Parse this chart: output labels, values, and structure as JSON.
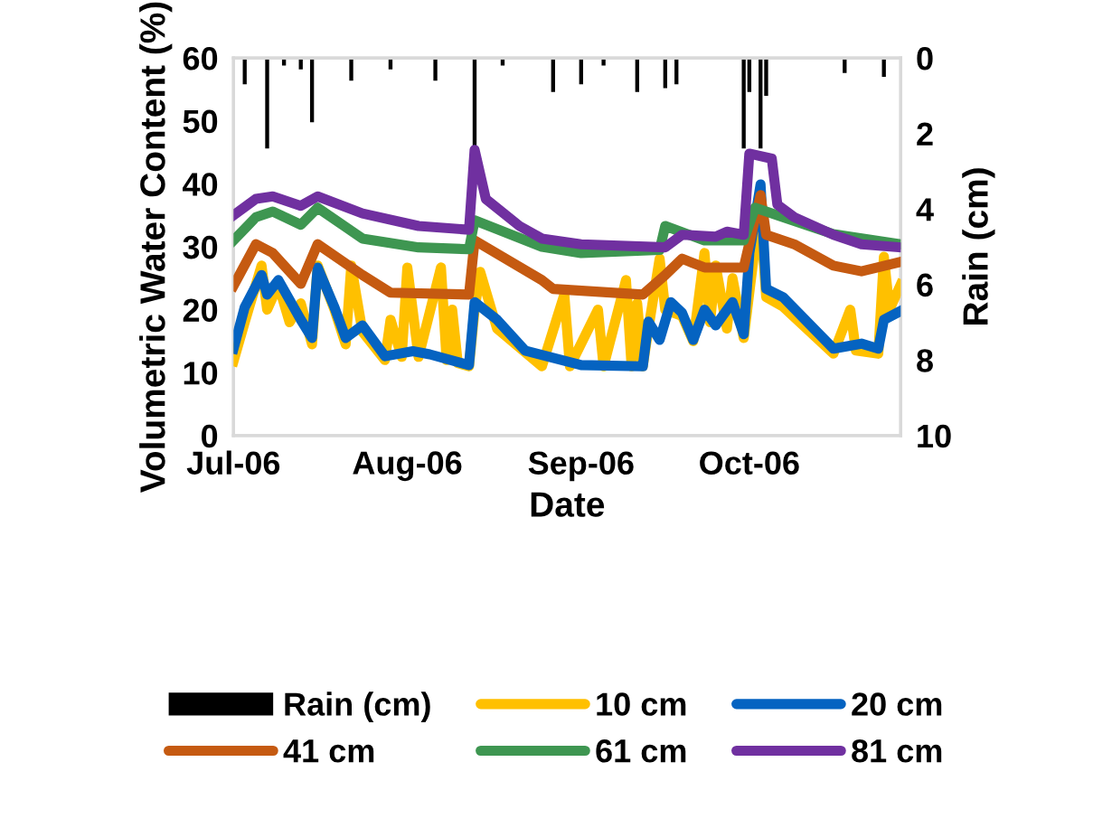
{
  "chart_data": {
    "type": "line",
    "xlabel": "Date",
    "ylabel": "Volumetric Water Content (%)",
    "y2label": "Rain (cm)",
    "xlim": [
      "2006-07-01",
      "2006-10-28"
    ],
    "xticks": [
      {
        "value": "2006-07-01",
        "label": "Jul-06"
      },
      {
        "value": "2006-08-01",
        "label": "Aug-06"
      },
      {
        "value": "2006-09-01",
        "label": "Sep-06"
      },
      {
        "value": "2006-10-01",
        "label": "Oct-06"
      }
    ],
    "ylim": [
      0,
      60
    ],
    "yticks": [
      0,
      10,
      20,
      30,
      40,
      50,
      60
    ],
    "y2lim": [
      10,
      0
    ],
    "y2ticks": [
      0,
      2,
      4,
      6,
      8,
      10
    ],
    "grid": false,
    "legend": "bottom",
    "series": [
      {
        "name": "Rain (cm)",
        "type": "bar",
        "axis": "y2",
        "color": "#000000",
        "x": [
          "2006-07-03",
          "2006-07-07",
          "2006-07-10",
          "2006-07-13",
          "2006-07-15",
          "2006-07-22",
          "2006-07-29",
          "2006-08-06",
          "2006-08-13",
          "2006-08-18",
          "2006-08-27",
          "2006-09-01",
          "2006-09-05",
          "2006-09-11",
          "2006-09-16",
          "2006-09-18",
          "2006-09-30",
          "2006-10-01",
          "2006-10-03",
          "2006-10-04",
          "2006-10-18",
          "2006-10-25"
        ],
        "values": [
          0.7,
          2.4,
          0.2,
          0.3,
          1.7,
          0.6,
          0.3,
          0.6,
          2.4,
          0.2,
          0.9,
          0.7,
          0.2,
          0.9,
          0.8,
          0.7,
          2.4,
          0.9,
          2.4,
          1.0,
          0.4,
          0.5
        ]
      },
      {
        "name": "10 cm",
        "color": "#ffc000",
        "x": [
          "2006-07-01",
          "2006-07-03",
          "2006-07-06",
          "2006-07-07",
          "2006-07-09",
          "2006-07-11",
          "2006-07-13",
          "2006-07-15",
          "2006-07-16",
          "2006-07-19",
          "2006-07-21",
          "2006-07-22",
          "2006-07-24",
          "2006-07-28",
          "2006-07-29",
          "2006-07-31",
          "2006-08-01",
          "2006-08-03",
          "2006-08-07",
          "2006-08-08",
          "2006-08-09",
          "2006-08-10",
          "2006-08-12",
          "2006-08-13",
          "2006-08-14",
          "2006-08-17",
          "2006-08-25",
          "2006-08-29",
          "2006-08-30",
          "2006-09-04",
          "2006-09-05",
          "2006-09-09",
          "2006-09-10",
          "2006-09-11",
          "2006-09-12",
          "2006-09-13",
          "2006-09-15",
          "2006-09-16",
          "2006-09-19",
          "2006-09-21",
          "2006-09-23",
          "2006-09-24",
          "2006-09-25",
          "2006-09-27",
          "2006-09-28",
          "2006-09-30",
          "2006-10-02",
          "2006-10-03",
          "2006-10-04",
          "2006-10-07",
          "2006-10-16",
          "2006-10-19",
          "2006-10-20",
          "2006-10-24",
          "2006-10-25",
          "2006-10-26",
          "2006-10-28"
        ],
        "values": [
          11.8,
          18,
          27,
          20,
          24,
          18,
          21,
          14.5,
          27,
          20,
          14.5,
          27,
          16.5,
          12,
          18.4,
          12.5,
          26.7,
          12.5,
          26.7,
          12,
          20,
          11.5,
          11,
          20,
          26,
          17,
          11,
          22.4,
          11,
          20,
          11,
          24.7,
          11,
          21,
          11,
          17,
          28.1,
          20,
          19,
          15,
          29,
          18,
          27,
          17,
          25,
          15.5,
          30,
          35,
          22,
          20.5,
          13,
          20,
          13.5,
          13,
          28.4,
          20,
          24
        ]
      },
      {
        "name": "20 cm",
        "color": "#0563c1",
        "x": [
          "2006-07-01",
          "2006-07-03",
          "2006-07-06",
          "2006-07-07",
          "2006-07-09",
          "2006-07-13",
          "2006-07-15",
          "2006-07-16",
          "2006-07-19",
          "2006-07-21",
          "2006-07-24",
          "2006-07-28",
          "2006-08-02",
          "2006-08-05",
          "2006-08-12",
          "2006-08-13",
          "2006-08-17",
          "2006-08-22",
          "2006-09-01",
          "2006-09-12",
          "2006-09-13",
          "2006-09-15",
          "2006-09-17",
          "2006-09-19",
          "2006-09-21",
          "2006-09-23",
          "2006-09-25",
          "2006-09-28",
          "2006-09-30",
          "2006-10-01",
          "2006-10-03",
          "2006-10-04",
          "2006-10-07",
          "2006-10-16",
          "2006-10-21",
          "2006-10-24",
          "2006-10-25",
          "2006-10-28"
        ],
        "values": [
          13.8,
          20.4,
          25.5,
          22.4,
          24.7,
          18.4,
          15.5,
          26.7,
          20.4,
          15.5,
          17.5,
          12.6,
          13.4,
          12.9,
          11.2,
          21.2,
          18.4,
          13.5,
          11.2,
          11,
          18.1,
          15.2,
          21.2,
          19.5,
          15.2,
          20,
          17.5,
          21.2,
          16.1,
          29,
          39.9,
          23.3,
          22,
          13.8,
          14.6,
          13.8,
          18.4,
          19.8
        ]
      },
      {
        "name": "41 cm",
        "color": "#c55a11",
        "x": [
          "2006-07-01",
          "2006-07-05",
          "2006-07-08",
          "2006-07-13",
          "2006-07-16",
          "2006-07-24",
          "2006-07-29",
          "2006-08-12",
          "2006-08-13",
          "2006-08-25",
          "2006-08-27",
          "2006-09-12",
          "2006-09-16",
          "2006-09-19",
          "2006-09-23",
          "2006-09-30",
          "2006-10-03",
          "2006-10-04",
          "2006-10-09",
          "2006-10-16",
          "2006-10-21",
          "2006-10-28"
        ],
        "values": [
          23.8,
          30.4,
          29,
          24.1,
          30.4,
          25.5,
          22.7,
          22.4,
          31,
          24.7,
          23.3,
          22.4,
          25.5,
          28.1,
          26.7,
          26.7,
          38.2,
          31.9,
          30.4,
          27,
          26.1,
          27.6
        ]
      },
      {
        "name": "61 cm",
        "color": "#3e9651",
        "x": [
          "2006-07-01",
          "2006-07-05",
          "2006-07-08",
          "2006-07-13",
          "2006-07-16",
          "2006-07-24",
          "2006-08-03",
          "2006-08-12",
          "2006-08-13",
          "2006-08-25",
          "2006-09-01",
          "2006-09-15",
          "2006-09-16",
          "2006-09-23",
          "2006-09-30",
          "2006-10-02",
          "2006-10-07",
          "2006-10-16",
          "2006-10-28"
        ],
        "values": [
          31,
          34.7,
          35.6,
          33.5,
          36.2,
          31.3,
          29.9,
          29.6,
          34.2,
          30,
          29,
          29.5,
          33.3,
          31,
          31,
          36.2,
          34.7,
          32,
          30.4
        ]
      },
      {
        "name": "81 cm",
        "color": "#7030a0",
        "x": [
          "2006-07-01",
          "2006-07-05",
          "2006-07-08",
          "2006-07-13",
          "2006-07-16",
          "2006-07-24",
          "2006-08-03",
          "2006-08-12",
          "2006-08-13",
          "2006-08-15",
          "2006-08-21",
          "2006-08-25",
          "2006-09-01",
          "2006-09-16",
          "2006-09-19",
          "2006-09-25",
          "2006-09-27",
          "2006-09-30",
          "2006-10-01",
          "2006-10-05",
          "2006-10-06",
          "2006-10-09",
          "2006-10-16",
          "2006-10-21",
          "2006-10-28"
        ],
        "values": [
          35,
          37.6,
          38,
          36.5,
          38,
          35.3,
          33.3,
          32.7,
          45.4,
          37.6,
          33.3,
          31.3,
          30.4,
          29.9,
          31.9,
          31.6,
          32.4,
          31.9,
          44.8,
          44,
          36.7,
          34.7,
          31.9,
          30.4,
          29.9
        ]
      }
    ]
  }
}
